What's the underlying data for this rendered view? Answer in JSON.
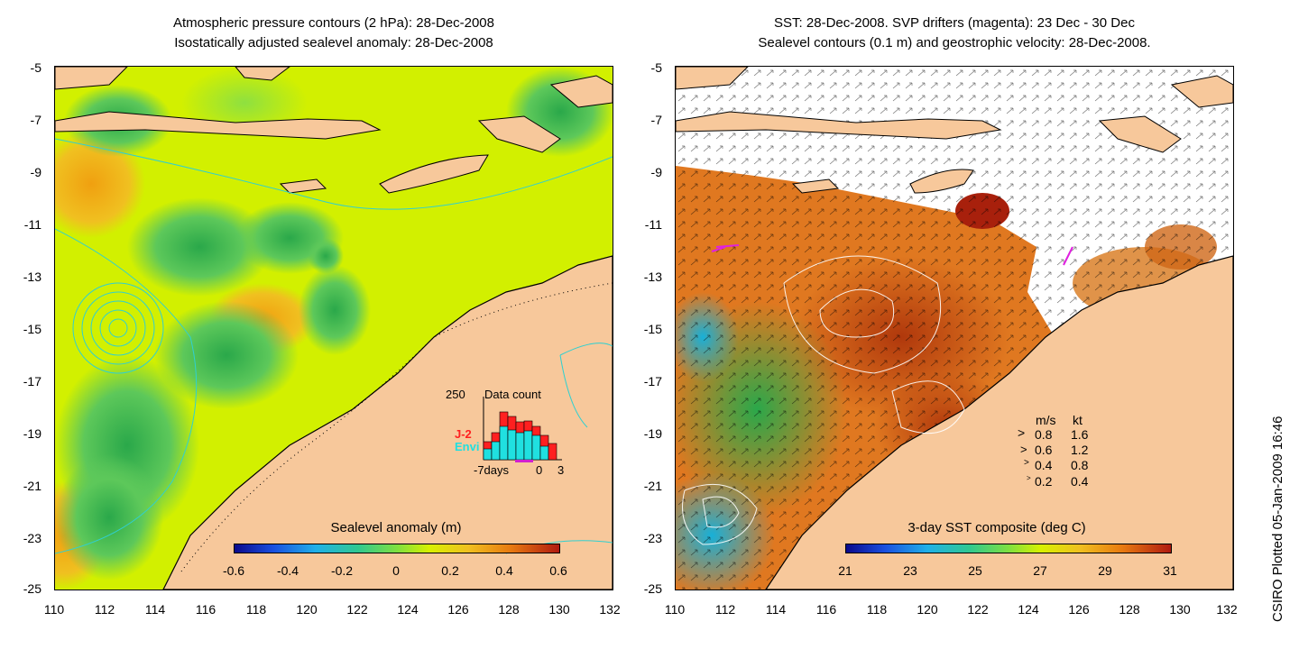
{
  "left": {
    "title_line1": "Atmospheric pressure contours (2 hPa): 28-Dec-2008",
    "title_line2": "Isostatically adjusted sealevel anomaly: 28-Dec-2008",
    "colorbar_title": "Sealevel anomaly (m)",
    "colorbar_ticks": [
      "-0.6",
      "-0.4",
      "-0.2",
      "0",
      "0.2",
      "0.4",
      "0.6"
    ],
    "inset": {
      "max_label": "250",
      "title": "Data count",
      "series1": "J-2",
      "series2": "Envi",
      "x_left": "-7days",
      "x_mid": "0",
      "x_right": "3",
      "series1_color": "#ff2020",
      "series2_color": "#20e0e0"
    }
  },
  "right": {
    "title_line1": "SST: 28-Dec-2008. SVP drifters (magenta): 23 Dec - 30 Dec",
    "title_line2": "Sealevel contours (0.1 m) and geostrophic velocity: 28-Dec-2008.",
    "colorbar_title": "3-day SST composite (deg C)",
    "colorbar_ticks": [
      "21",
      "23",
      "25",
      "27",
      "29",
      "31"
    ],
    "legend": {
      "header_ms": "m/s",
      "header_kt": "kt",
      "rows": [
        {
          "ms": "0.8",
          "kt": "1.6"
        },
        {
          "ms": "0.6",
          "kt": "1.2"
        },
        {
          "ms": "0.4",
          "kt": "0.8"
        },
        {
          "ms": "0.2",
          "kt": "0.4"
        }
      ]
    }
  },
  "axes": {
    "lat_ticks": [
      "-5",
      "-7",
      "-9",
      "-11",
      "-13",
      "-15",
      "-17",
      "-19",
      "-21",
      "-23",
      "-25"
    ],
    "lon_ticks": [
      "110",
      "112",
      "114",
      "116",
      "118",
      "120",
      "122",
      "124",
      "126",
      "128",
      "130",
      "132"
    ]
  },
  "credit": "CSIRO Plotted 05-Jan-2009 16:46",
  "colors": {
    "land": "#f7c89b",
    "sea_yellow": "#d2f000",
    "sea_green": "#4cc94c",
    "sst_orange": "#e07820",
    "sst_red": "#c04010",
    "contour_cyan": "#30d0d0"
  }
}
